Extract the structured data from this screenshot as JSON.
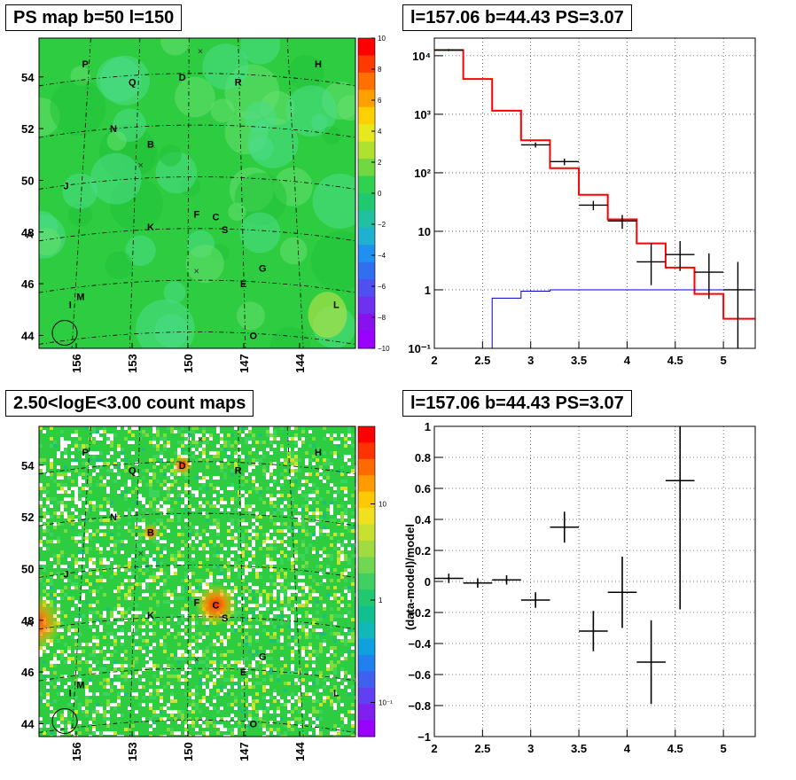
{
  "top_left": {
    "title": "PS map b=50 l=150",
    "y_ticks": [
      "54",
      "52",
      "50",
      "48",
      "46",
      "44"
    ],
    "x_ticks": [
      "156",
      "153",
      "150",
      "147",
      "144"
    ],
    "colorbar_ticks": [
      "10",
      "8",
      "6",
      "4",
      "2",
      "0",
      "−2",
      "−4",
      "−6",
      "−8",
      "−10"
    ],
    "sources": [
      "P",
      "H",
      "Q",
      "D",
      "R",
      "N",
      "B",
      "J",
      "F",
      "C",
      "A",
      "K",
      "S",
      "G",
      "E",
      "M",
      "I",
      "L",
      "O"
    ]
  },
  "top_right": {
    "title": "l=157.06 b=44.43 PS=3.07",
    "y_ticks": [
      "10⁴",
      "10³",
      "10²",
      "10",
      "1",
      "10⁻¹"
    ],
    "x_ticks": [
      "2",
      "2.5",
      "3",
      "3.5",
      "4",
      "4.5",
      "5"
    ]
  },
  "bottom_left": {
    "title": "2.50<logE<3.00 count maps",
    "y_ticks": [
      "54",
      "52",
      "50",
      "48",
      "46",
      "44"
    ],
    "x_ticks": [
      "156",
      "153",
      "150",
      "147",
      "144"
    ],
    "colorbar_ticks": [
      "10",
      "1",
      "10⁻¹"
    ],
    "sources": [
      "P",
      "H",
      "Q",
      "D",
      "R",
      "N",
      "B",
      "J",
      "F",
      "C",
      "A",
      "K",
      "S",
      "G",
      "E",
      "M",
      "I",
      "L",
      "O"
    ]
  },
  "bottom_right": {
    "title": "l=157.06 b=44.43 PS=3.07",
    "ylabel": "(data-model)/model",
    "y_ticks": [
      "1",
      "0.8",
      "0.6",
      "0.4",
      "0.2",
      "0",
      "−0.2",
      "−0.4",
      "−0.6",
      "−0.8",
      "−1"
    ],
    "x_ticks": [
      "2",
      "2.5",
      "3",
      "3.5",
      "4",
      "4.5",
      "5"
    ]
  },
  "colors": {
    "map_bg": "#2ecc40",
    "model_line": "#ff0000",
    "background_line": "#0000cc",
    "data_points": "#000000"
  },
  "chart_data": [
    {
      "type": "heatmap",
      "title": "PS map b=50 l=150",
      "xlabel": "",
      "ylabel": "",
      "xlim": [
        158,
        141
      ],
      "ylim": [
        43.5,
        55.5
      ],
      "color_scale": {
        "min": -10,
        "max": 10
      },
      "sources": [
        {
          "name": "P",
          "l": 155.5,
          "b": 54.5
        },
        {
          "name": "H",
          "l": 143.0,
          "b": 54.5
        },
        {
          "name": "Q",
          "l": 153.0,
          "b": 53.8
        },
        {
          "name": "D",
          "l": 150.3,
          "b": 54.0
        },
        {
          "name": "R",
          "l": 147.3,
          "b": 53.8
        },
        {
          "name": "N",
          "l": 154.0,
          "b": 52.0
        },
        {
          "name": "B",
          "l": 152.0,
          "b": 51.4
        },
        {
          "name": "J",
          "l": 156.5,
          "b": 49.8
        },
        {
          "name": "F",
          "l": 149.5,
          "b": 48.7
        },
        {
          "name": "C",
          "l": 148.5,
          "b": 48.6
        },
        {
          "name": "A",
          "l": 158.5,
          "b": 47.9
        },
        {
          "name": "K",
          "l": 152.0,
          "b": 48.2
        },
        {
          "name": "S",
          "l": 148.0,
          "b": 48.1
        },
        {
          "name": "G",
          "l": 146.0,
          "b": 46.6
        },
        {
          "name": "E",
          "l": 147.0,
          "b": 46.0
        },
        {
          "name": "M",
          "l": 155.8,
          "b": 45.5
        },
        {
          "name": "I",
          "l": 156.2,
          "b": 45.2
        },
        {
          "name": "L",
          "l": 142.0,
          "b": 45.2
        },
        {
          "name": "O",
          "l": 146.5,
          "b": 44.0
        }
      ]
    },
    {
      "type": "line",
      "title": "l=157.06 b=44.43 PS=3.07",
      "xlabel": "",
      "ylabel": "",
      "xlim": [
        2,
        5.33
      ],
      "ylim": [
        0.1,
        20000
      ],
      "yscale": "log",
      "grid": true,
      "series": [
        {
          "style": "step",
          "color": "#ff0000",
          "x": [
            2.0,
            2.3,
            2.6,
            2.9,
            3.2,
            3.5,
            3.8,
            4.1,
            4.4,
            4.7,
            5.0,
            5.33
          ],
          "values": [
            12500,
            4000,
            1150,
            360,
            120,
            42,
            16,
            6.2,
            2.4,
            0.85,
            0.32,
            0.32
          ]
        },
        {
          "style": "step",
          "color": "#0000cc",
          "x": [
            2.3,
            2.6,
            2.9,
            3.2,
            3.5,
            3.8,
            4.1,
            4.4,
            4.7,
            5.0,
            5.33
          ],
          "values": [
            0.1,
            0.72,
            0.95,
            1.0,
            1.0,
            1.0,
            1.0,
            1.0,
            1.0,
            1.0,
            1.0
          ]
        },
        {
          "style": "errorbar",
          "color": "#000000",
          "x": [
            2.15,
            3.05,
            3.35,
            3.65,
            3.95,
            4.25,
            4.55,
            4.85,
            5.15
          ],
          "xerr": 0.15,
          "values": [
            12500,
            300,
            155,
            28,
            15,
            3,
            4,
            2,
            1
          ],
          "yerr_low": [
            500,
            30,
            20,
            5,
            4,
            1.8,
            1.9,
            1.3,
            0.92
          ],
          "yerr_high": [
            500,
            30,
            20,
            5,
            4,
            3.3,
            2.8,
            2.2,
            2.0
          ]
        }
      ]
    },
    {
      "type": "heatmap",
      "title": "2.50<logE<3.00 count maps",
      "xlabel": "",
      "ylabel": "",
      "xlim": [
        158,
        141
      ],
      "ylim": [
        43.5,
        55.5
      ],
      "color_scale": {
        "min": 0.05,
        "max": 30,
        "scale": "log"
      },
      "hotspots": [
        {
          "name": "A",
          "l": 158.3,
          "b": 47.9,
          "level": 30
        },
        {
          "name": "C",
          "l": 148.5,
          "b": 48.6,
          "level": 20
        },
        {
          "name": "D",
          "l": 150.3,
          "b": 54.0,
          "level": 6
        },
        {
          "name": "B",
          "l": 152.0,
          "b": 51.4,
          "level": 4
        }
      ]
    },
    {
      "type": "scatter",
      "title": "l=157.06 b=44.43 PS=3.07",
      "xlabel": "",
      "ylabel": "(data-model)/model",
      "xlim": [
        2,
        5.33
      ],
      "ylim": [
        -1,
        1
      ],
      "grid": true,
      "x": [
        2.15,
        2.45,
        2.75,
        3.05,
        3.35,
        3.65,
        3.95,
        4.25,
        4.55
      ],
      "xerr": 0.15,
      "values": [
        0.02,
        -0.01,
        0.01,
        -0.12,
        0.35,
        -0.32,
        -0.07,
        -0.52,
        0.65
      ],
      "yerr": [
        0.03,
        0.03,
        0.03,
        0.05,
        0.1,
        0.13,
        0.23,
        0.27,
        0.83
      ]
    }
  ]
}
